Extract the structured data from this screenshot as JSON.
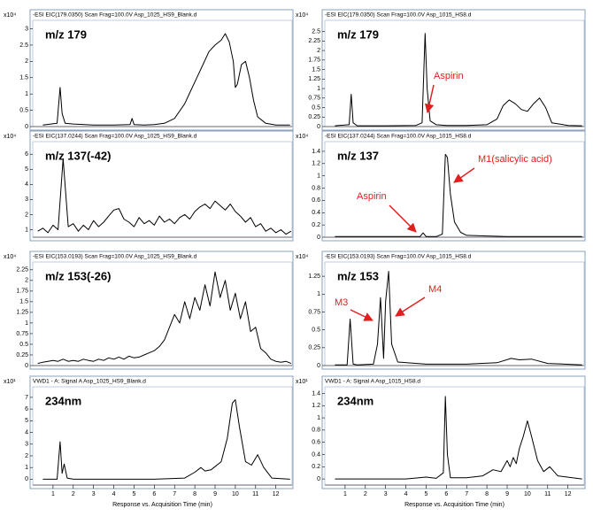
{
  "chart_data": [
    {
      "type": "line",
      "title": "-ESI EIC(179.0350) Scan Frag=100.0V Asp_1025_HS9_Blank.d",
      "label": "m/z 179",
      "y_scale_label": "x10⁴",
      "xlim": [
        0,
        12.8
      ],
      "ylim": [
        0,
        3.15
      ],
      "yticks": [
        0,
        0.5,
        1,
        1.5,
        2,
        2.5,
        3
      ],
      "x": [
        0.5,
        1.2,
        1.35,
        1.45,
        1.6,
        2,
        3,
        4,
        4.8,
        4.9,
        5.0,
        5.5,
        6,
        6.5,
        7,
        7.5,
        7.8,
        8.1,
        8.4,
        8.7,
        9,
        9.3,
        9.5,
        9.7,
        9.9,
        10.0,
        10.1,
        10.3,
        10.5,
        10.7,
        10.9,
        11.1,
        11.5,
        12,
        12.7
      ],
      "values": [
        0.05,
        0.1,
        1.2,
        0.4,
        0.1,
        0.08,
        0.05,
        0.05,
        0.06,
        0.25,
        0.06,
        0.05,
        0.06,
        0.1,
        0.25,
        0.7,
        1.1,
        1.5,
        1.9,
        2.3,
        2.5,
        2.65,
        2.85,
        2.6,
        2.0,
        1.2,
        1.3,
        1.9,
        2.0,
        1.5,
        0.8,
        0.3,
        0.1,
        0.05,
        0.05
      ],
      "color": "#000000"
    },
    {
      "type": "line",
      "title": "-ESI EIC(179.0350) Scan Frag=100.0V Asp_1015_HS8.d",
      "label": "m/z 179",
      "y_scale_label": "x10⁴",
      "xlim": [
        0,
        12.8
      ],
      "ylim": [
        0,
        2.7
      ],
      "yticks": [
        0,
        0.25,
        0.5,
        0.75,
        1,
        1.25,
        1.5,
        1.75,
        2,
        2.25,
        2.5
      ],
      "x": [
        0.5,
        1.2,
        1.3,
        1.4,
        1.6,
        3,
        4.5,
        4.8,
        4.95,
        5.05,
        5.2,
        5.5,
        6,
        7,
        8,
        8.5,
        8.8,
        9.1,
        9.4,
        9.7,
        10,
        10.3,
        10.6,
        10.9,
        11.2,
        12,
        12.7
      ],
      "values": [
        0.02,
        0.05,
        0.85,
        0.1,
        0.02,
        0.02,
        0.03,
        0.1,
        2.45,
        1.0,
        0.15,
        0.05,
        0.03,
        0.03,
        0.05,
        0.2,
        0.55,
        0.7,
        0.6,
        0.45,
        0.4,
        0.6,
        0.75,
        0.5,
        0.1,
        0.03,
        0.02
      ],
      "color": "#000000",
      "annotations": [
        "Aspirin"
      ]
    },
    {
      "type": "line",
      "title": "-ESI EIC(137.0244) Scan Frag=100.0V Asp_1025_HS9_Blank.d",
      "label": "m/z 137(-42)",
      "y_scale_label": "x10⁴",
      "xlim": [
        0,
        12.8
      ],
      "ylim": [
        0.5,
        6.6
      ],
      "yticks": [
        1,
        2,
        3,
        4,
        5,
        6
      ],
      "x": [
        0.25,
        0.5,
        0.75,
        1,
        1.25,
        1.5,
        1.75,
        2,
        2.25,
        2.5,
        2.75,
        3,
        3.25,
        3.5,
        3.75,
        4,
        4.25,
        4.5,
        4.75,
        5,
        5.25,
        5.5,
        5.75,
        6,
        6.25,
        6.5,
        6.75,
        7,
        7.25,
        7.5,
        7.75,
        8,
        8.25,
        8.5,
        8.75,
        9,
        9.25,
        9.5,
        9.75,
        10,
        10.25,
        10.5,
        10.75,
        11,
        11.25,
        11.5,
        11.75,
        12,
        12.25,
        12.5,
        12.75
      ],
      "values": [
        0.9,
        1.1,
        0.8,
        1.3,
        1.0,
        5.7,
        1.2,
        1.4,
        0.9,
        1.3,
        1.0,
        1.6,
        1.2,
        1.5,
        1.9,
        2.3,
        2.4,
        1.7,
        1.5,
        1.2,
        1.8,
        1.4,
        1.6,
        1.3,
        1.9,
        1.5,
        1.7,
        1.4,
        1.8,
        2.0,
        1.7,
        2.2,
        2.5,
        2.7,
        2.4,
        2.9,
        2.6,
        2.3,
        2.7,
        2.2,
        1.9,
        1.5,
        1.8,
        1.2,
        1.4,
        0.9,
        1.1,
        0.8,
        1.0,
        0.7,
        0.9
      ],
      "color": "#000000"
    },
    {
      "type": "line",
      "title": "-ESI EIC(137.0244) Scan Frag=100.0V Asp_1015_HS8.d",
      "label": "m/z 137",
      "y_scale_label": "x10⁴",
      "xlim": [
        0,
        12.8
      ],
      "ylim": [
        0,
        1.5
      ],
      "yticks": [
        0,
        0.2,
        0.4,
        0.6,
        0.8,
        1,
        1.2,
        1.4
      ],
      "x": [
        0.5,
        3,
        4.7,
        4.85,
        5.0,
        5.5,
        5.8,
        5.95,
        6.05,
        6.2,
        6.4,
        6.7,
        7,
        8,
        9,
        10,
        12.7
      ],
      "values": [
        0.01,
        0.01,
        0.01,
        0.07,
        0.01,
        0.01,
        0.05,
        1.35,
        1.3,
        0.7,
        0.25,
        0.08,
        0.03,
        0.02,
        0.01,
        0.01,
        0.01
      ],
      "color": "#000000",
      "annotations": [
        "Aspirin",
        "M1(salicylic acid)"
      ]
    },
    {
      "type": "line",
      "title": "-ESI EIC(153.0193) Scan Frag=100.0V Asp_1025_HS9_Blank.d",
      "label": "m/z 153(-26)",
      "y_scale_label": "x10⁴",
      "xlim": [
        0,
        12.8
      ],
      "ylim": [
        0,
        2.35
      ],
      "yticks": [
        0,
        0.25,
        0.5,
        0.75,
        1,
        1.25,
        1.5,
        1.75,
        2,
        2.25
      ],
      "x": [
        0.25,
        0.5,
        0.75,
        1,
        1.25,
        1.5,
        1.75,
        2,
        2.25,
        2.5,
        2.75,
        3,
        3.25,
        3.5,
        3.75,
        4,
        4.25,
        4.5,
        4.75,
        5,
        5.25,
        5.5,
        5.75,
        6,
        6.25,
        6.5,
        6.75,
        7,
        7.25,
        7.5,
        7.75,
        8,
        8.25,
        8.5,
        8.75,
        9,
        9.25,
        9.5,
        9.75,
        10,
        10.25,
        10.5,
        10.75,
        11,
        11.25,
        11.5,
        11.75,
        12,
        12.25,
        12.5,
        12.75
      ],
      "values": [
        0.05,
        0.08,
        0.1,
        0.12,
        0.1,
        0.15,
        0.1,
        0.12,
        0.1,
        0.15,
        0.12,
        0.1,
        0.15,
        0.12,
        0.18,
        0.15,
        0.2,
        0.15,
        0.22,
        0.18,
        0.2,
        0.25,
        0.3,
        0.35,
        0.45,
        0.6,
        0.9,
        1.2,
        1.0,
        1.5,
        1.1,
        1.6,
        1.3,
        1.9,
        1.4,
        2.2,
        1.6,
        2.0,
        1.3,
        1.7,
        1.1,
        1.5,
        0.8,
        0.9,
        0.4,
        0.3,
        0.15,
        0.1,
        0.08,
        0.1,
        0.05
      ],
      "color": "#000000"
    },
    {
      "type": "line",
      "title": "-ESI EIC(153.0193) Scan Frag=100.0V Asp_1015_HS8.d",
      "label": "m/z 153",
      "y_scale_label": "x10⁴",
      "xlim": [
        0,
        12.8
      ],
      "ylim": [
        0,
        1.4
      ],
      "yticks": [
        0,
        0.25,
        0.5,
        0.75,
        1,
        1.25
      ],
      "x": [
        0.5,
        1.1,
        1.25,
        1.4,
        1.6,
        2.4,
        2.6,
        2.75,
        2.9,
        3.0,
        3.15,
        3.3,
        3.6,
        5,
        7,
        8.5,
        9.2,
        9.6,
        10.2,
        11,
        12.7
      ],
      "values": [
        0.01,
        0.01,
        0.65,
        0.02,
        0.01,
        0.02,
        0.3,
        0.95,
        0.1,
        0.9,
        1.32,
        0.3,
        0.05,
        0.02,
        0.02,
        0.04,
        0.1,
        0.08,
        0.09,
        0.03,
        0.01
      ],
      "color": "#000000",
      "annotations": [
        "M3",
        "M4"
      ]
    },
    {
      "type": "line",
      "title": "VWD1 - A: Signal A Asp_1025_HS9_Blank.d",
      "label": "234nm",
      "y_scale_label": "x10¹",
      "xlim": [
        0,
        12.8
      ],
      "ylim": [
        -0.5,
        7.6
      ],
      "yticks": [
        0,
        1,
        2,
        3,
        4,
        5,
        6,
        7
      ],
      "xticks": [
        1,
        2,
        3,
        4,
        5,
        6,
        7,
        8,
        9,
        10,
        11,
        12
      ],
      "xlabel": "Response vs. Acquisition Time (min)",
      "x": [
        0.5,
        1.2,
        1.35,
        1.45,
        1.55,
        1.7,
        2,
        4,
        6,
        7.5,
        8.0,
        8.3,
        8.5,
        8.8,
        9.3,
        9.6,
        9.85,
        10.0,
        10.2,
        10.5,
        10.8,
        11.1,
        11.4,
        11.8,
        12.7
      ],
      "values": [
        0,
        0,
        3.2,
        0.5,
        1.3,
        0.1,
        0,
        0,
        0,
        0.1,
        0.6,
        1.0,
        0.7,
        0.8,
        1.5,
        3.5,
        6.5,
        6.8,
        4.5,
        1.5,
        1.2,
        2.1,
        1.0,
        0.1,
        0
      ],
      "color": "#000000"
    },
    {
      "type": "line",
      "title": "VWD1 - A: Signal A Asp_1015_HS8.d",
      "label": "234nm",
      "y_scale_label": "x10¹",
      "xlim": [
        0,
        12.8
      ],
      "ylim": [
        -0.1,
        1.45
      ],
      "yticks": [
        0,
        0.2,
        0.4,
        0.6,
        0.8,
        1,
        1.2,
        1.4
      ],
      "xticks": [
        1,
        2,
        3,
        4,
        5,
        6,
        7,
        8,
        9,
        10,
        11,
        12
      ],
      "xlabel": "Response vs. Acquisition Time (min)",
      "x": [
        0.5,
        2,
        4,
        5.0,
        5.5,
        5.85,
        5.95,
        6.05,
        6.2,
        7,
        7.8,
        8.3,
        8.7,
        9.0,
        9.15,
        9.3,
        9.45,
        9.6,
        9.8,
        10.0,
        10.2,
        10.5,
        10.8,
        11.1,
        11.5,
        12.7
      ],
      "values": [
        0,
        0,
        0,
        0.03,
        0.01,
        0.1,
        1.35,
        0.4,
        0.02,
        0.02,
        0.05,
        0.15,
        0.12,
        0.3,
        0.2,
        0.35,
        0.25,
        0.5,
        0.7,
        0.95,
        0.7,
        0.3,
        0.12,
        0.2,
        0.05,
        0
      ],
      "color": "#000000"
    }
  ]
}
